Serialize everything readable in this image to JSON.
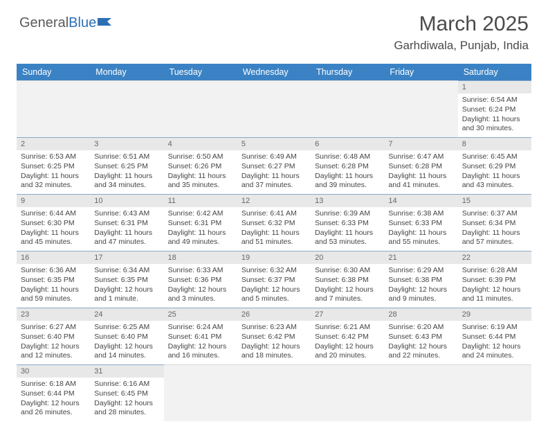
{
  "logo": {
    "part1": "General",
    "part2": "Blue"
  },
  "title": "March 2025",
  "location": "Garhdiwala, Punjab, India",
  "colors": {
    "header_bg": "#3b82c4",
    "header_text": "#ffffff",
    "cell_border": "#8aa8c8",
    "datenum_bg": "#e8e8e8",
    "empty_bg": "#f2f2f2",
    "body_text": "#444444",
    "logo_gray": "#5a5a5a",
    "logo_blue": "#2c6fb5"
  },
  "day_names": [
    "Sunday",
    "Monday",
    "Tuesday",
    "Wednesday",
    "Thursday",
    "Friday",
    "Saturday"
  ],
  "weeks": [
    [
      null,
      null,
      null,
      null,
      null,
      null,
      {
        "d": "1",
        "sr": "6:54 AM",
        "ss": "6:24 PM",
        "dl": "11 hours and 30 minutes."
      }
    ],
    [
      {
        "d": "2",
        "sr": "6:53 AM",
        "ss": "6:25 PM",
        "dl": "11 hours and 32 minutes."
      },
      {
        "d": "3",
        "sr": "6:51 AM",
        "ss": "6:25 PM",
        "dl": "11 hours and 34 minutes."
      },
      {
        "d": "4",
        "sr": "6:50 AM",
        "ss": "6:26 PM",
        "dl": "11 hours and 35 minutes."
      },
      {
        "d": "5",
        "sr": "6:49 AM",
        "ss": "6:27 PM",
        "dl": "11 hours and 37 minutes."
      },
      {
        "d": "6",
        "sr": "6:48 AM",
        "ss": "6:28 PM",
        "dl": "11 hours and 39 minutes."
      },
      {
        "d": "7",
        "sr": "6:47 AM",
        "ss": "6:28 PM",
        "dl": "11 hours and 41 minutes."
      },
      {
        "d": "8",
        "sr": "6:45 AM",
        "ss": "6:29 PM",
        "dl": "11 hours and 43 minutes."
      }
    ],
    [
      {
        "d": "9",
        "sr": "6:44 AM",
        "ss": "6:30 PM",
        "dl": "11 hours and 45 minutes."
      },
      {
        "d": "10",
        "sr": "6:43 AM",
        "ss": "6:31 PM",
        "dl": "11 hours and 47 minutes."
      },
      {
        "d": "11",
        "sr": "6:42 AM",
        "ss": "6:31 PM",
        "dl": "11 hours and 49 minutes."
      },
      {
        "d": "12",
        "sr": "6:41 AM",
        "ss": "6:32 PM",
        "dl": "11 hours and 51 minutes."
      },
      {
        "d": "13",
        "sr": "6:39 AM",
        "ss": "6:33 PM",
        "dl": "11 hours and 53 minutes."
      },
      {
        "d": "14",
        "sr": "6:38 AM",
        "ss": "6:33 PM",
        "dl": "11 hours and 55 minutes."
      },
      {
        "d": "15",
        "sr": "6:37 AM",
        "ss": "6:34 PM",
        "dl": "11 hours and 57 minutes."
      }
    ],
    [
      {
        "d": "16",
        "sr": "6:36 AM",
        "ss": "6:35 PM",
        "dl": "11 hours and 59 minutes."
      },
      {
        "d": "17",
        "sr": "6:34 AM",
        "ss": "6:35 PM",
        "dl": "12 hours and 1 minute."
      },
      {
        "d": "18",
        "sr": "6:33 AM",
        "ss": "6:36 PM",
        "dl": "12 hours and 3 minutes."
      },
      {
        "d": "19",
        "sr": "6:32 AM",
        "ss": "6:37 PM",
        "dl": "12 hours and 5 minutes."
      },
      {
        "d": "20",
        "sr": "6:30 AM",
        "ss": "6:38 PM",
        "dl": "12 hours and 7 minutes."
      },
      {
        "d": "21",
        "sr": "6:29 AM",
        "ss": "6:38 PM",
        "dl": "12 hours and 9 minutes."
      },
      {
        "d": "22",
        "sr": "6:28 AM",
        "ss": "6:39 PM",
        "dl": "12 hours and 11 minutes."
      }
    ],
    [
      {
        "d": "23",
        "sr": "6:27 AM",
        "ss": "6:40 PM",
        "dl": "12 hours and 12 minutes."
      },
      {
        "d": "24",
        "sr": "6:25 AM",
        "ss": "6:40 PM",
        "dl": "12 hours and 14 minutes."
      },
      {
        "d": "25",
        "sr": "6:24 AM",
        "ss": "6:41 PM",
        "dl": "12 hours and 16 minutes."
      },
      {
        "d": "26",
        "sr": "6:23 AM",
        "ss": "6:42 PM",
        "dl": "12 hours and 18 minutes."
      },
      {
        "d": "27",
        "sr": "6:21 AM",
        "ss": "6:42 PM",
        "dl": "12 hours and 20 minutes."
      },
      {
        "d": "28",
        "sr": "6:20 AM",
        "ss": "6:43 PM",
        "dl": "12 hours and 22 minutes."
      },
      {
        "d": "29",
        "sr": "6:19 AM",
        "ss": "6:44 PM",
        "dl": "12 hours and 24 minutes."
      }
    ],
    [
      {
        "d": "30",
        "sr": "6:18 AM",
        "ss": "6:44 PM",
        "dl": "12 hours and 26 minutes."
      },
      {
        "d": "31",
        "sr": "6:16 AM",
        "ss": "6:45 PM",
        "dl": "12 hours and 28 minutes."
      },
      null,
      null,
      null,
      null,
      null
    ]
  ],
  "labels": {
    "sunrise": "Sunrise:",
    "sunset": "Sunset:",
    "daylight": "Daylight:"
  }
}
